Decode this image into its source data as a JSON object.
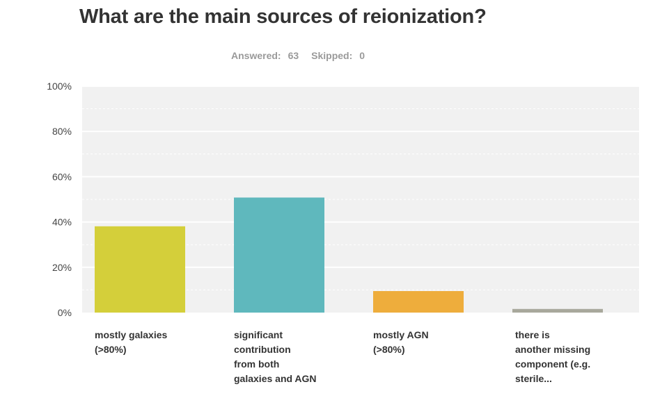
{
  "chart_data": {
    "type": "bar",
    "title": "What are the main sources of reionization?",
    "answered_label": "Answered:",
    "answered": "63",
    "skipped_label": "Skipped:",
    "skipped": "0",
    "categories": [
      "mostly galaxies\n(>80%)",
      "significant\ncontribution\nfrom both\ngalaxies and AGN",
      "mostly AGN\n(>80%)",
      "there is\nanother missing\ncomponent (e.g.\nsterile..."
    ],
    "values": [
      38.1,
      50.8,
      9.5,
      1.6
    ],
    "colors": [
      "#d4cf3a",
      "#5fb8bd",
      "#eead3c",
      "#a8a89c"
    ],
    "yticks": [
      "0%",
      "20%",
      "40%",
      "60%",
      "80%",
      "100%"
    ],
    "ylim": [
      0,
      100
    ],
    "grid": true,
    "plot_background": "#f1f1f1",
    "gridline_color": "#ffffff"
  }
}
